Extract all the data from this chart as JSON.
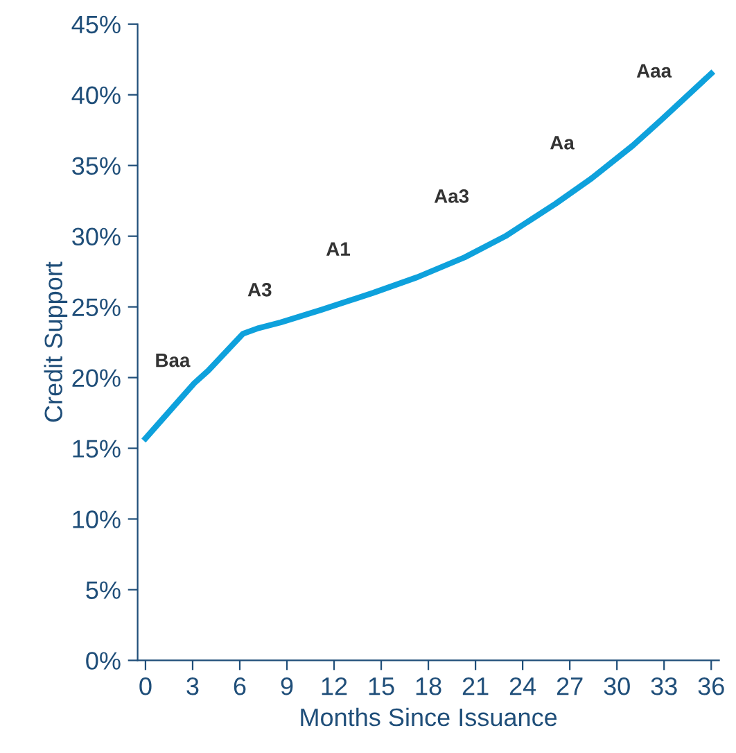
{
  "chart_data": {
    "type": "line",
    "xlabel": "Months Since Issuance",
    "ylabel": "Credit Support",
    "x": [
      0,
      3.1,
      4,
      6.2,
      7.2,
      8.6,
      11.2,
      14.5,
      17.3,
      20.3,
      22.9,
      26.1,
      28.4,
      31.0,
      32.8,
      36
    ],
    "series": [
      {
        "color": "#0ea1dc",
        "values": [
          15.7,
          19.6,
          20.5,
          23.1,
          23.5,
          23.9,
          24.8,
          26.0,
          27.1,
          28.5,
          30.0,
          32.3,
          34.1,
          36.4,
          38.2,
          41.5
        ]
      }
    ],
    "xlim": [
      -0.5,
      36.5
    ],
    "xticks": [
      0,
      3,
      6,
      9,
      12,
      15,
      18,
      21,
      24,
      27,
      30,
      33,
      36
    ],
    "ylim": [
      0,
      45
    ],
    "yticks": [
      {
        "value": 0,
        "label": "0%"
      },
      {
        "value": 5,
        "label": "5%"
      },
      {
        "value": 10,
        "label": "10%"
      },
      {
        "value": 15,
        "label": "15%"
      },
      {
        "value": 20,
        "label": "20%"
      },
      {
        "value": 25,
        "label": "25%"
      },
      {
        "value": 30,
        "label": "30%"
      },
      {
        "value": 35,
        "label": "35%"
      },
      {
        "value": 40,
        "label": "40%"
      },
      {
        "value": 45,
        "label": "45%"
      }
    ],
    "annotations": [
      "Baa",
      "A3",
      "A1",
      "Aa3",
      "Aa",
      "Aaa"
    ],
    "grid": false,
    "marker": "none",
    "line_style": "solid"
  }
}
